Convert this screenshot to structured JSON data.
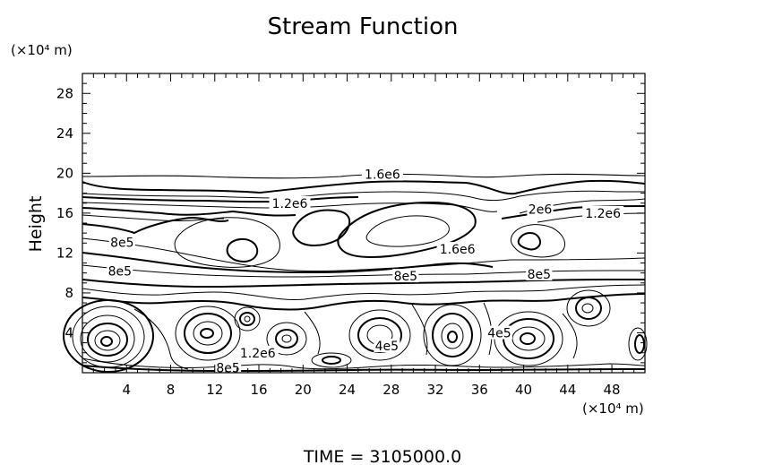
{
  "chart_data": {
    "type": "contour",
    "title": "Stream Function",
    "ylabel": "Height",
    "xlabel": "",
    "x_unit_label": "(×10⁴ m)",
    "y_unit_label": "(×10⁴ m)",
    "xlim": [
      0,
      51
    ],
    "ylim": [
      0,
      30
    ],
    "x_ticks": [
      "4",
      "8",
      "12",
      "16",
      "20",
      "24",
      "28",
      "32",
      "36",
      "40",
      "44",
      "48"
    ],
    "y_ticks": [
      "4",
      "8",
      "12",
      "16",
      "20",
      "24",
      "28"
    ],
    "contour_labels": [
      {
        "text": "1.6e6",
        "x": 27.2,
        "y": 19.8
      },
      {
        "text": "1.2e6",
        "x": 18.8,
        "y": 16.9
      },
      {
        "text": "2e6",
        "x": 41.5,
        "y": 16.3
      },
      {
        "text": "1.2e6",
        "x": 47.2,
        "y": 15.9
      },
      {
        "text": "8e5",
        "x": 3.6,
        "y": 13.0
      },
      {
        "text": "1.6e6",
        "x": 34.0,
        "y": 12.3
      },
      {
        "text": "8e5",
        "x": 3.4,
        "y": 10.1
      },
      {
        "text": "8e5",
        "x": 29.3,
        "y": 9.6
      },
      {
        "text": "8e5",
        "x": 41.4,
        "y": 9.8
      },
      {
        "text": "4e5",
        "x": 37.8,
        "y": 3.9
      },
      {
        "text": "4e5",
        "x": 27.6,
        "y": 2.6
      },
      {
        "text": "1.2e6",
        "x": 15.9,
        "y": 1.9
      },
      {
        "text": "8e5",
        "x": 13.2,
        "y": 0.4
      }
    ],
    "footer": "TIME = 3105000.0",
    "colors": {
      "line": "#000000",
      "background": "#ffffff"
    }
  }
}
